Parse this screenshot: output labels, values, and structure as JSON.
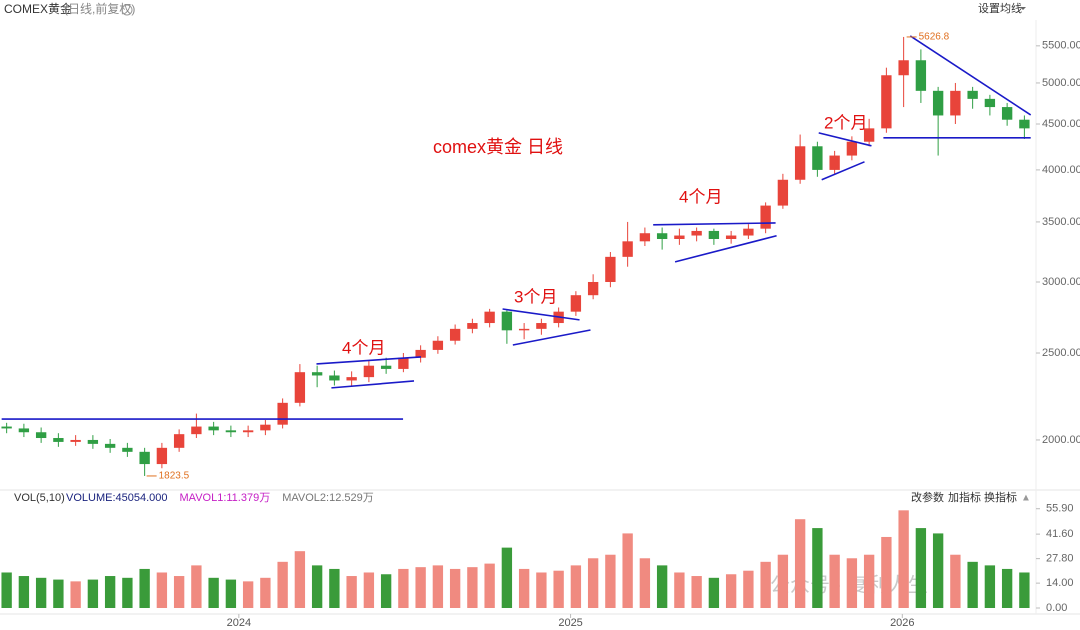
{
  "header": {
    "title": "COMEX黄金",
    "subtitle": "(日线,前复权)",
    "settings": "设置均线"
  },
  "watermark": "公众号 · 复利人生",
  "chart_data": [
    {
      "type": "candlestick",
      "log_scale": true,
      "up_color": "#e8443a",
      "down_color": "#2f9e44",
      "xlim": [
        2023.28,
        2026.4
      ],
      "ylim": [
        1768,
        5877
      ],
      "yticks": [
        {
          "value": 2000,
          "label": "2000.00"
        },
        {
          "value": 2500,
          "label": "2500.00"
        },
        {
          "value": 3000,
          "label": "3000.00"
        },
        {
          "value": 3500,
          "label": "3500.00"
        },
        {
          "value": 4000,
          "label": "4000.00"
        },
        {
          "value": 4500,
          "label": "4500.00"
        },
        {
          "value": 5000,
          "label": "5000.00"
        },
        {
          "value": 5500,
          "label": "5500.00"
        }
      ],
      "x": [
        2023.3,
        2023.352,
        2023.404,
        2023.456,
        2023.508,
        2023.56,
        2023.612,
        2023.664,
        2023.716,
        2023.768,
        2023.82,
        2023.872,
        2023.924,
        2023.976,
        2024.028,
        2024.08,
        2024.132,
        2024.184,
        2024.236,
        2024.288,
        2024.34,
        2024.392,
        2024.444,
        2024.496,
        2024.548,
        2024.6,
        2024.652,
        2024.704,
        2024.756,
        2024.808,
        2024.86,
        2024.912,
        2024.964,
        2025.016,
        2025.068,
        2025.12,
        2025.172,
        2025.224,
        2025.276,
        2025.328,
        2025.38,
        2025.432,
        2025.484,
        2025.536,
        2025.588,
        2025.64,
        2025.692,
        2025.744,
        2025.796,
        2025.848,
        2025.9,
        2025.952,
        2026.004,
        2026.056,
        2026.108,
        2026.16,
        2026.212,
        2026.264,
        2026.316,
        2026.368
      ],
      "open": [
        2070,
        2060,
        2040,
        2010,
        1990,
        2000,
        1980,
        1960,
        1940,
        1880,
        1960,
        2030,
        2070,
        2050,
        2040,
        2050,
        2080,
        2200,
        2380,
        2360,
        2330,
        2350,
        2420,
        2400,
        2470,
        2520,
        2580,
        2660,
        2700,
        2780,
        2650,
        2660,
        2700,
        2780,
        2900,
        3000,
        3200,
        3330,
        3400,
        3350,
        3380,
        3420,
        3350,
        3380,
        3440,
        3650,
        3900,
        4250,
        4000,
        4150,
        4300,
        4450,
        5100,
        5300,
        4900,
        4600,
        4900,
        4800,
        4700,
        4550
      ],
      "high": [
        2090,
        2085,
        2065,
        2035,
        2025,
        2025,
        2005,
        1985,
        1960,
        1985,
        2055,
        2140,
        2095,
        2075,
        2075,
        2105,
        2225,
        2430,
        2420,
        2390,
        2385,
        2450,
        2470,
        2500,
        2550,
        2610,
        2690,
        2730,
        2800,
        2790,
        2700,
        2730,
        2810,
        2930,
        3060,
        3240,
        3500,
        3450,
        3450,
        3440,
        3450,
        3440,
        3420,
        3480,
        3680,
        3960,
        4380,
        4300,
        4200,
        4360,
        4560,
        5200,
        5626.8,
        5450,
        4950,
        5000,
        4950,
        4850,
        4750,
        4600
      ],
      "low": [
        2035,
        2015,
        1985,
        1965,
        1970,
        1955,
        1935,
        1915,
        1823.5,
        1860,
        1940,
        2010,
        2025,
        2015,
        2015,
        2025,
        2060,
        2180,
        2290,
        2300,
        2300,
        2320,
        2370,
        2380,
        2440,
        2495,
        2555,
        2630,
        2670,
        2560,
        2590,
        2620,
        2670,
        2750,
        2870,
        2960,
        3120,
        3290,
        3260,
        3300,
        3330,
        3300,
        3310,
        3350,
        3400,
        3620,
        3860,
        3930,
        3960,
        4100,
        4250,
        4400,
        4700,
        4750,
        4150,
        4500,
        4680,
        4600,
        4480,
        4330
      ],
      "close": [
        2060,
        2040,
        2010,
        1990,
        2000,
        1980,
        1960,
        1940,
        1880,
        1960,
        2030,
        2070,
        2050,
        2040,
        2050,
        2080,
        2200,
        2380,
        2360,
        2330,
        2350,
        2420,
        2400,
        2470,
        2520,
        2580,
        2660,
        2700,
        2780,
        2650,
        2660,
        2700,
        2780,
        2900,
        3000,
        3200,
        3330,
        3400,
        3350,
        3380,
        3420,
        3350,
        3380,
        3440,
        3650,
        3900,
        4250,
        4000,
        4150,
        4300,
        4450,
        5100,
        5300,
        4900,
        4600,
        4900,
        4800,
        4700,
        4550,
        4450
      ],
      "trendline_color": "#1a1ac8",
      "trendlines": [
        {
          "x": [
            2023.285,
            2024.495
          ],
          "y": [
            2110,
            2110
          ]
        },
        {
          "x": [
            2024.234,
            2024.549
          ],
          "y": [
            2431,
            2475
          ]
        },
        {
          "x": [
            2024.279,
            2024.528
          ],
          "y": [
            2286,
            2327
          ]
        },
        {
          "x": [
            2024.795,
            2025.027
          ],
          "y": [
            2799,
            2722
          ]
        },
        {
          "x": [
            2024.826,
            2025.06
          ],
          "y": [
            2552,
            2652
          ]
        },
        {
          "x": [
            2025.249,
            2025.618
          ],
          "y": [
            3474,
            3491
          ]
        },
        {
          "x": [
            2025.315,
            2025.621
          ],
          "y": [
            3159,
            3378
          ]
        },
        {
          "x": [
            2025.748,
            2025.907
          ],
          "y": [
            4399,
            4255
          ]
        },
        {
          "x": [
            2025.757,
            2025.886
          ],
          "y": [
            3900,
            4084
          ]
        },
        {
          "x": [
            2026.024,
            2026.387
          ],
          "y": [
            5642,
            4606
          ]
        },
        {
          "x": [
            2025.943,
            2026.387
          ],
          "y": [
            4343,
            4343
          ]
        }
      ],
      "annotation_color": "#e01010",
      "annotations": [
        "comex黄金 日线",
        "4个月",
        "3个月",
        "4个月",
        "2个月"
      ]
    },
    {
      "type": "bar",
      "title": "VOL(5,10)",
      "legend": [
        "VOLUME:45054.000",
        "MAVOL1:11.379万",
        "MAVOL2:12.529万"
      ],
      "legend_colors": [
        "#1a237e",
        "#c51fc5",
        "#777777"
      ],
      "toolbar": [
        "改参数",
        "加指标",
        "换指标"
      ],
      "xlim": [
        2023.28,
        2026.4
      ],
      "xticks": [
        2024,
        2025,
        2026
      ],
      "ylim": [
        0,
        58
      ],
      "yticks": [
        {
          "value": 0,
          "label": "0.00"
        },
        {
          "value": 14,
          "label": "14.00"
        },
        {
          "value": 27.8,
          "label": "27.80"
        },
        {
          "value": 41.6,
          "label": "41.60"
        },
        {
          "value": 55.9,
          "label": "55.90"
        }
      ],
      "values": [
        20,
        18,
        17,
        16,
        15,
        16,
        18,
        17,
        22,
        20,
        18,
        24,
        17,
        16,
        15,
        17,
        26,
        32,
        24,
        22,
        18,
        20,
        19,
        22,
        23,
        24,
        22,
        23,
        25,
        34,
        22,
        20,
        21,
        24,
        28,
        30,
        42,
        28,
        24,
        20,
        18,
        17,
        19,
        21,
        26,
        30,
        50,
        45,
        30,
        28,
        30,
        40,
        55,
        45,
        42,
        30,
        26,
        24,
        22,
        20
      ]
    }
  ]
}
